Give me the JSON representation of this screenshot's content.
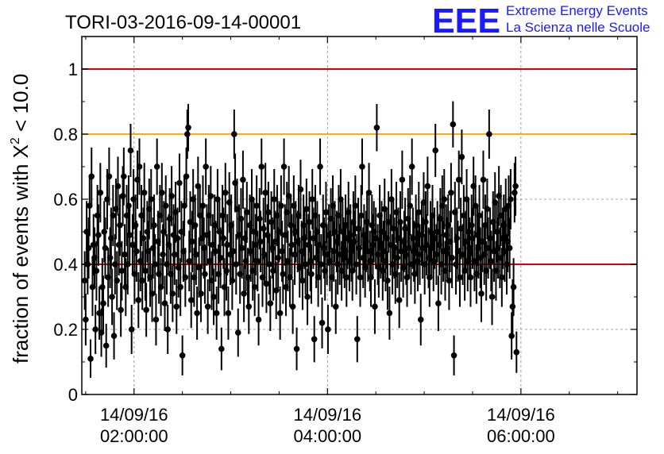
{
  "title": "TORI-03-2016-09-14-00001",
  "logo": {
    "mark": "EEE",
    "line1": "Extreme Energy Events",
    "line2": "La Scienza nelle Scuole",
    "color": "#1a1aff"
  },
  "chart_data": {
    "type": "scatter",
    "title": "TORI-03-2016-09-14-00001",
    "ylabel_prefix": "fraction of events with ",
    "ylabel_symbol": "X",
    "ylabel_sup": "2",
    "ylabel_suffix": " < 10.0",
    "xlabel": "",
    "ylim": [
      0,
      1.1
    ],
    "xlim_hours": [
      1.46,
      7.2
    ],
    "yticks": [
      {
        "value": 0,
        "label": "0"
      },
      {
        "value": 0.2,
        "label": "0.2"
      },
      {
        "value": 0.4,
        "label": "0.4"
      },
      {
        "value": 0.6,
        "label": "0.6"
      },
      {
        "value": 0.8,
        "label": "0.8"
      },
      {
        "value": 1,
        "label": "1"
      }
    ],
    "xticks": [
      {
        "hour": 2,
        "date": "14/09/16",
        "time": "02:00:00"
      },
      {
        "hour": 4,
        "date": "14/09/16",
        "time": "04:00:00"
      },
      {
        "hour": 6,
        "date": "14/09/16",
        "time": "06:00:00"
      }
    ],
    "reference_lines": [
      {
        "value": 1.0,
        "color": "#dd0000"
      },
      {
        "value": 0.8,
        "color": "#ffaa00"
      },
      {
        "value": 0.4,
        "color": "#dd0000"
      }
    ],
    "grid": "dashed",
    "series_color": "#000000",
    "series": {
      "name": "fraction",
      "t_start_hour": 1.49,
      "t_step_hour": 0.0101,
      "y": [
        0.35,
        0.23,
        0.5,
        0.4,
        0.45,
        0.58,
        0.11,
        0.67,
        0.33,
        0.46,
        0.42,
        0.2,
        0.38,
        0.55,
        0.49,
        0.25,
        0.62,
        0.19,
        0.33,
        0.28,
        0.5,
        0.45,
        0.15,
        0.6,
        0.36,
        0.67,
        0.42,
        0.48,
        0.3,
        0.55,
        0.18,
        0.4,
        0.57,
        0.35,
        0.64,
        0.46,
        0.52,
        0.26,
        0.38,
        0.61,
        0.67,
        0.43,
        0.33,
        0.55,
        0.4,
        0.58,
        0.49,
        0.75,
        0.2,
        0.46,
        0.6,
        0.37,
        0.52,
        0.44,
        0.66,
        0.29,
        0.7,
        0.41,
        0.55,
        0.35,
        0.48,
        0.62,
        0.38,
        0.26,
        0.5,
        0.44,
        0.57,
        0.36,
        0.6,
        0.31,
        0.45,
        0.52,
        0.4,
        0.23,
        0.7,
        0.47,
        0.37,
        0.55,
        0.33,
        0.62,
        0.43,
        0.5,
        0.28,
        0.58,
        0.4,
        0.2,
        0.46,
        0.54,
        0.37,
        0.61,
        0.31,
        0.49,
        0.43,
        0.56,
        0.27,
        0.48,
        0.39,
        0.65,
        0.33,
        0.5,
        0.12,
        0.44,
        0.58,
        0.36,
        0.67,
        0.8,
        0.82,
        0.41,
        0.53,
        0.29,
        0.47,
        0.6,
        0.36,
        0.52,
        0.43,
        0.25,
        0.64,
        0.39,
        0.55,
        0.31,
        0.48,
        0.58,
        0.45,
        0.37,
        0.7,
        0.49,
        0.27,
        0.55,
        0.41,
        0.61,
        0.35,
        0.46,
        0.3,
        0.52,
        0.44,
        0.25,
        0.6,
        0.37,
        0.5,
        0.42,
        0.14,
        0.55,
        0.48,
        0.33,
        0.62,
        0.38,
        0.46,
        0.25,
        0.59,
        0.43,
        0.52,
        0.35,
        0.44,
        0.8,
        0.65,
        0.4,
        0.57,
        0.19,
        0.49,
        0.37,
        0.54,
        0.45,
        0.66,
        0.31,
        0.48,
        0.41,
        0.56,
        0.36,
        0.27,
        0.52,
        0.44,
        0.6,
        0.38,
        0.5,
        0.33,
        0.46,
        0.58,
        0.41,
        0.23,
        0.54,
        0.47,
        0.7,
        0.36,
        0.51,
        0.43,
        0.62,
        0.34,
        0.49,
        0.56,
        0.4,
        0.28,
        0.53,
        0.45,
        0.38,
        0.6,
        0.47,
        0.32,
        0.55,
        0.42,
        0.5,
        0.25,
        0.58,
        0.44,
        0.37,
        0.7,
        0.49,
        0.33,
        0.56,
        0.41,
        0.61,
        0.36,
        0.52,
        0.46,
        0.27,
        0.58,
        0.43,
        0.5,
        0.14,
        0.47,
        0.55,
        0.39,
        0.63,
        0.44,
        0.35,
        0.52,
        0.48,
        0.4,
        0.57,
        0.3,
        0.46,
        0.53,
        0.41,
        0.37,
        0.6,
        0.48,
        0.17,
        0.55,
        0.42,
        0.5,
        0.36,
        0.46,
        0.7,
        0.4,
        0.22,
        0.52,
        0.45,
        0.38,
        0.56,
        0.43,
        0.2,
        0.49,
        0.41,
        0.54,
        0.36,
        0.58,
        0.44,
        0.5,
        0.27,
        0.47,
        0.4,
        0.55,
        0.43,
        0.6,
        0.38,
        0.5,
        0.45,
        0.42,
        0.52,
        0.36,
        0.48,
        0.56,
        0.41,
        0.49,
        0.44,
        0.38,
        0.53,
        0.47,
        0.58,
        0.4,
        0.17,
        0.51,
        0.45,
        0.36,
        0.55,
        0.7,
        0.42,
        0.49,
        0.39,
        0.47,
        0.53,
        0.44,
        0.62,
        0.41,
        0.36,
        0.52,
        0.46,
        0.5,
        0.27,
        0.48,
        0.82,
        0.43,
        0.39,
        0.55,
        0.45,
        0.5,
        0.38,
        0.44,
        0.57,
        0.41,
        0.48,
        0.35,
        0.53,
        0.25,
        0.46,
        0.6,
        0.4,
        0.51,
        0.45,
        0.37,
        0.56,
        0.42,
        0.48,
        0.29,
        0.53,
        0.44,
        0.66,
        0.39,
        0.47,
        0.51,
        0.43,
        0.36,
        0.54,
        0.45,
        0.58,
        0.4,
        0.7,
        0.48,
        0.44,
        0.37,
        0.52,
        0.46,
        0.41,
        0.56,
        0.43,
        0.23,
        0.49,
        0.45,
        0.59,
        0.4,
        0.53,
        0.46,
        0.64,
        0.42,
        0.36,
        0.5,
        0.45,
        0.55,
        0.41,
        0.48,
        0.75,
        0.43,
        0.5,
        0.28,
        0.46,
        0.54,
        0.4,
        0.58,
        0.44,
        0.6,
        0.38,
        0.49,
        0.45,
        0.52,
        0.35,
        0.47,
        0.62,
        0.42,
        0.83,
        0.12,
        0.56,
        0.4,
        0.48,
        0.44,
        0.66,
        0.36,
        0.51,
        0.73,
        0.43,
        0.55,
        0.38,
        0.47,
        0.6,
        0.41,
        0.5,
        0.45,
        0.36,
        0.52,
        0.48,
        0.64,
        0.41,
        0.58,
        0.37,
        0.49,
        0.45,
        0.55,
        0.42,
        0.31,
        0.47,
        0.66,
        0.43,
        0.52,
        0.38,
        0.57,
        0.45,
        0.8,
        0.48,
        0.41,
        0.3,
        0.53,
        0.44,
        0.59,
        0.38,
        0.5,
        0.45,
        0.61,
        0.42,
        0.55,
        0.36,
        0.48,
        0.52,
        0.44,
        0.57,
        0.4,
        0.47,
        0.58,
        0.45,
        0.6,
        0.18,
        0.27,
        0.33,
        0.62,
        0.64,
        0.13
      ]
    }
  }
}
